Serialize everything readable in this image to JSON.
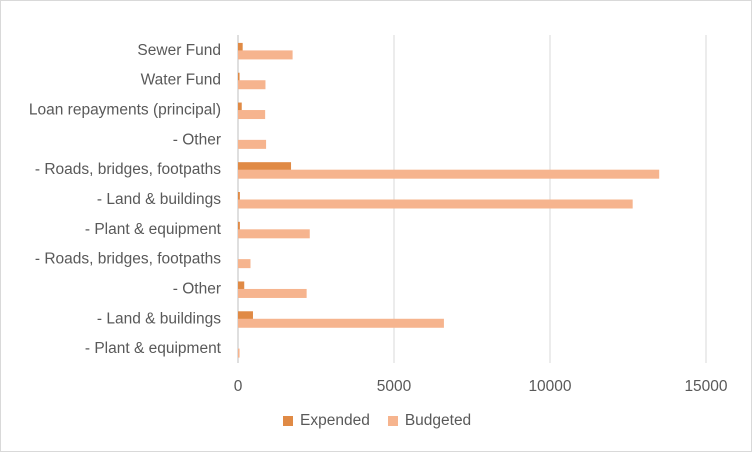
{
  "chart_data": {
    "type": "bar",
    "orientation": "horizontal",
    "categories": [
      "Sewer Fund",
      "Water Fund",
      "Loan repayments (principal)",
      "- Other",
      "- Roads, bridges, footpaths",
      "- Land & buildings",
      "- Plant & equipment",
      "- Roads, bridges, footpaths",
      "- Other",
      "- Land & buildings",
      "- Plant & equipment"
    ],
    "series": [
      {
        "name": "Expended",
        "color": "#e08a45",
        "values": [
          150,
          50,
          120,
          0,
          1700,
          60,
          60,
          0,
          200,
          480,
          0
        ]
      },
      {
        "name": "Budgeted",
        "color": "#f6b48e",
        "values": [
          1750,
          880,
          870,
          900,
          13500,
          12650,
          2300,
          400,
          2200,
          6600,
          50
        ]
      }
    ],
    "xlim": [
      0,
      15000
    ],
    "xticks": [
      "0",
      "5000",
      "10000",
      "15000"
    ],
    "grid": true,
    "legend": "bottom"
  }
}
